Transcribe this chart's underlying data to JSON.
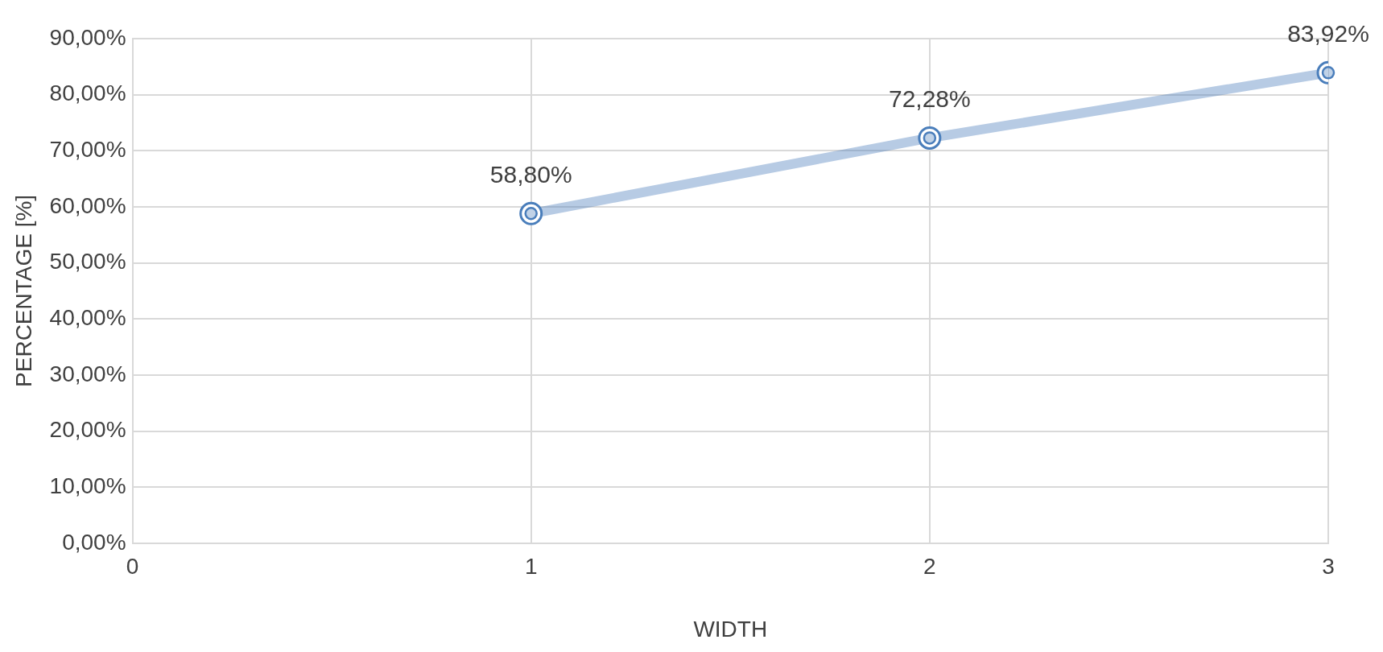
{
  "chart_data": {
    "type": "line",
    "xlabel": "WIDTH",
    "ylabel": "PERCENTAGE [%]",
    "x": [
      1,
      2,
      3
    ],
    "series": [
      {
        "color": "#4a7ebb",
        "values": [
          58.8,
          72.28,
          83.92
        ],
        "value_labels": [
          "58,80%",
          "72,28%",
          "83,92%"
        ]
      }
    ],
    "xlim": [
      0,
      3
    ],
    "xticks": [
      0,
      1,
      2,
      3
    ],
    "ylim": [
      0,
      90
    ],
    "yticks": [
      {
        "value": 0,
        "label": "0,00%"
      },
      {
        "value": 10,
        "label": "10,00%"
      },
      {
        "value": 20,
        "label": "20,00%"
      },
      {
        "value": 30,
        "label": "30,00%"
      },
      {
        "value": 40,
        "label": "40,00%"
      },
      {
        "value": 50,
        "label": "50,00%"
      },
      {
        "value": 60,
        "label": "60,00%"
      },
      {
        "value": 70,
        "label": "70,00%"
      },
      {
        "value": 80,
        "label": "80,00%"
      },
      {
        "value": 90,
        "label": "90,00%"
      }
    ],
    "grid": true,
    "marker": "circle",
    "legend": false
  }
}
